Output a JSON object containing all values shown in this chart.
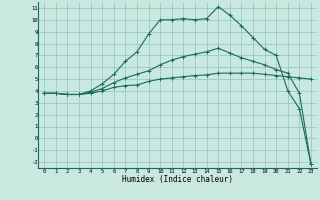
{
  "xlabel": "Humidex (Indice chaleur)",
  "background_color": "#c8e8e0",
  "grid_color": "#90c4bc",
  "line_color": "#1a6b5e",
  "xlim": [
    -0.5,
    23.5
  ],
  "ylim": [
    -2.5,
    11.5
  ],
  "xticks": [
    0,
    1,
    2,
    3,
    4,
    5,
    6,
    7,
    8,
    9,
    10,
    11,
    12,
    13,
    14,
    15,
    16,
    17,
    18,
    19,
    20,
    21,
    22,
    23
  ],
  "yticks": [
    -2,
    -1,
    0,
    1,
    2,
    3,
    4,
    5,
    6,
    7,
    8,
    9,
    10,
    11
  ],
  "curve1_x": [
    0,
    1,
    2,
    3,
    4,
    5,
    6,
    7,
    8,
    9,
    10,
    11,
    12,
    13,
    14,
    15,
    16,
    17,
    18,
    19,
    20,
    21,
    22,
    23
  ],
  "curve1_y": [
    3.8,
    3.8,
    3.7,
    3.7,
    3.8,
    4.0,
    4.3,
    4.45,
    4.5,
    4.8,
    5.0,
    5.1,
    5.2,
    5.3,
    5.35,
    5.5,
    5.5,
    5.5,
    5.5,
    5.4,
    5.3,
    5.2,
    5.1,
    5.0
  ],
  "curve2_x": [
    0,
    1,
    2,
    3,
    4,
    5,
    6,
    7,
    8,
    9,
    10,
    11,
    12,
    13,
    14,
    15,
    16,
    17,
    18,
    19,
    20,
    21,
    22,
    23
  ],
  "curve2_y": [
    3.8,
    3.8,
    3.7,
    3.7,
    4.0,
    4.6,
    5.4,
    6.5,
    7.3,
    8.8,
    10.0,
    10.0,
    10.1,
    10.0,
    10.1,
    11.1,
    10.4,
    9.5,
    8.5,
    7.5,
    7.0,
    4.0,
    2.5,
    -2.2
  ],
  "curve3_x": [
    0,
    1,
    2,
    3,
    4,
    5,
    6,
    7,
    8,
    9,
    10,
    11,
    12,
    13,
    14,
    15,
    16,
    17,
    18,
    19,
    20,
    21,
    22,
    23
  ],
  "curve3_y": [
    3.8,
    3.8,
    3.7,
    3.7,
    3.9,
    4.2,
    4.7,
    5.1,
    5.4,
    5.7,
    6.2,
    6.6,
    6.9,
    7.1,
    7.3,
    7.6,
    7.2,
    6.8,
    6.5,
    6.2,
    5.8,
    5.5,
    3.8,
    -2.2
  ]
}
